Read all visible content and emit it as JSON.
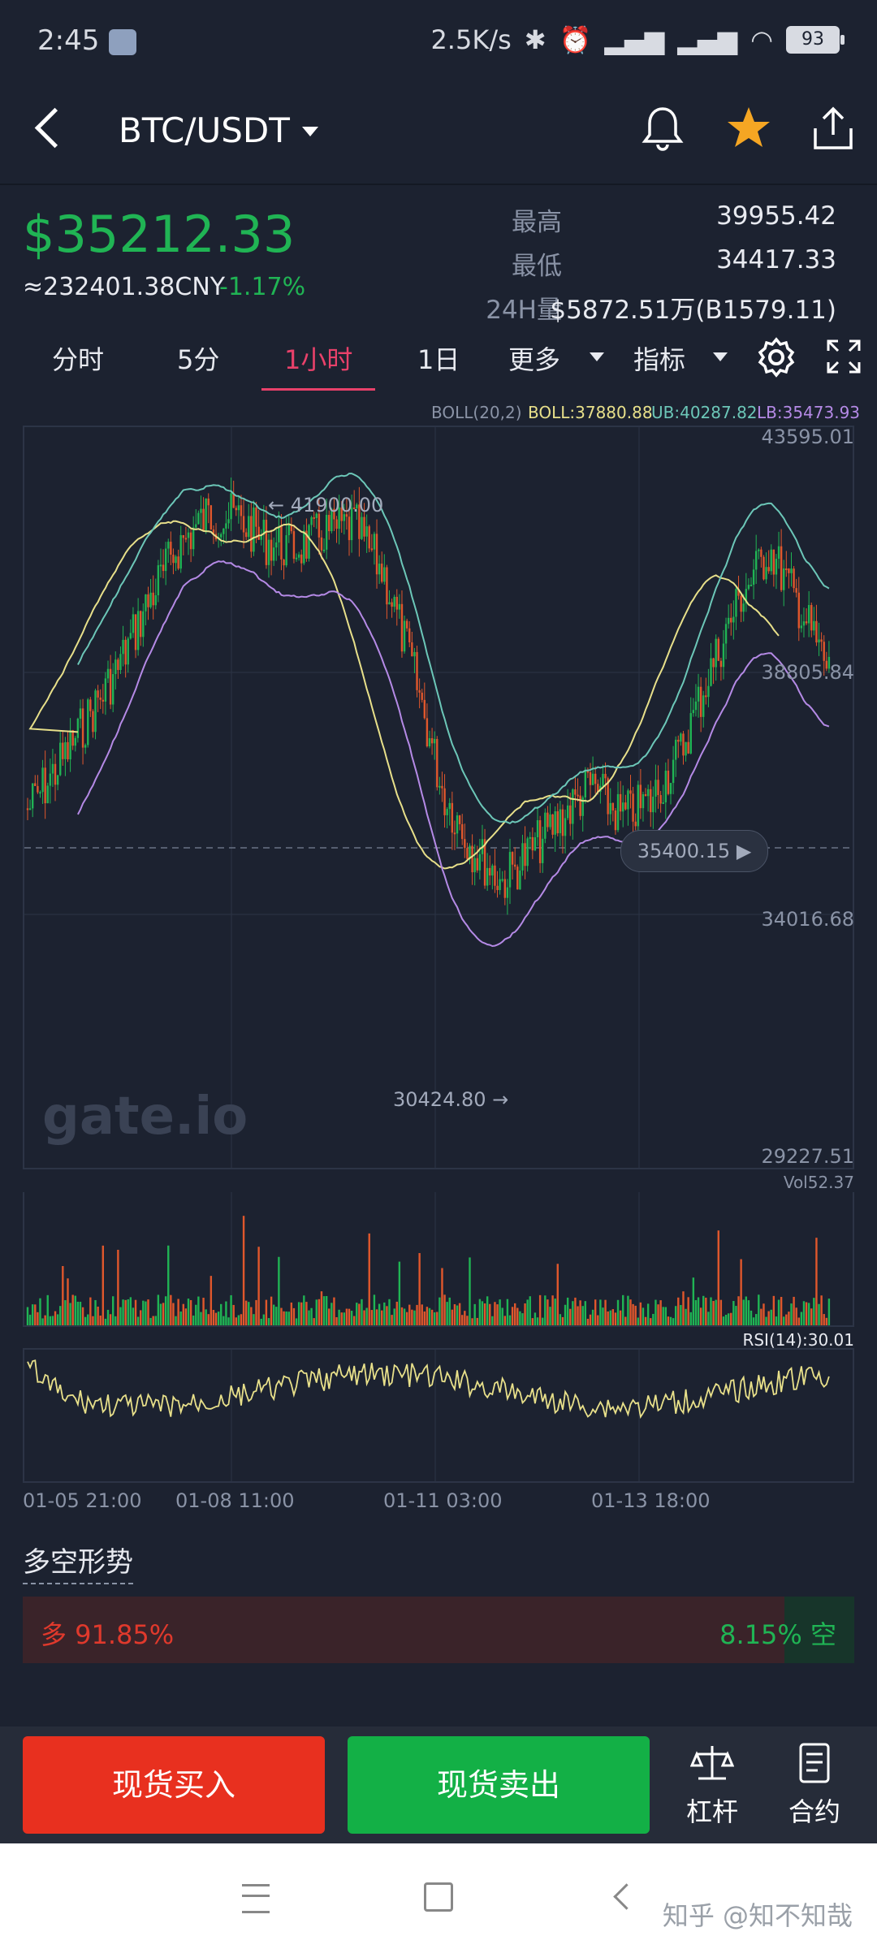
{
  "status_bar": {
    "time": "2:45",
    "net_speed": "2.5K/s",
    "battery": "93"
  },
  "header": {
    "pair": "BTC/USDT"
  },
  "ticker": {
    "price": "$35212.33",
    "cny": "≈232401.38CNY",
    "change": "-1.17%",
    "high_label": "最高",
    "high_value": "39955.42",
    "low_label": "最低",
    "low_value": "34417.33",
    "vol_label": "24H量",
    "vol_value": "$5872.51万(B1579.11)"
  },
  "tabs": {
    "t1": "分时",
    "t2": "5分",
    "t3": "1小时",
    "t4": "1日",
    "more": "更多",
    "indicator": "指标"
  },
  "chart": {
    "boll_label": "BOLL(20,2)",
    "boll_value": "BOLL:37880.88",
    "ub_value": "UB:40287.82",
    "lb_value": "LB:35473.93",
    "y_top": "43595.01",
    "y_mid": "38805.84",
    "y_low": "34016.68",
    "y_bottom": "29227.51",
    "high_marker": "41900.00",
    "low_marker": "30424.80",
    "current_price": "35400.15",
    "watermark": "gate.io",
    "vol_label": "Vol52.37",
    "rsi_label": "RSI(14):30.01",
    "x_labels": [
      "01-05 21:00",
      "01-08 11:00",
      "01-11 03:00",
      "01-13 18:00"
    ],
    "colors": {
      "up": "#20b454",
      "down": "#e0572c",
      "boll_mid": "#e8e08a",
      "ub": "#6cc7b8",
      "lb": "#b58ae6"
    }
  },
  "sentiment": {
    "title": "多空形势",
    "long": "多 91.85%",
    "short": "8.15% 空",
    "long_fraction": 0.9185
  },
  "trade": {
    "buy": "现货买入",
    "sell": "现货卖出",
    "leverage": "杠杆",
    "contract": "合约"
  },
  "footer": {
    "watermark": "知乎 @知不知哉"
  }
}
